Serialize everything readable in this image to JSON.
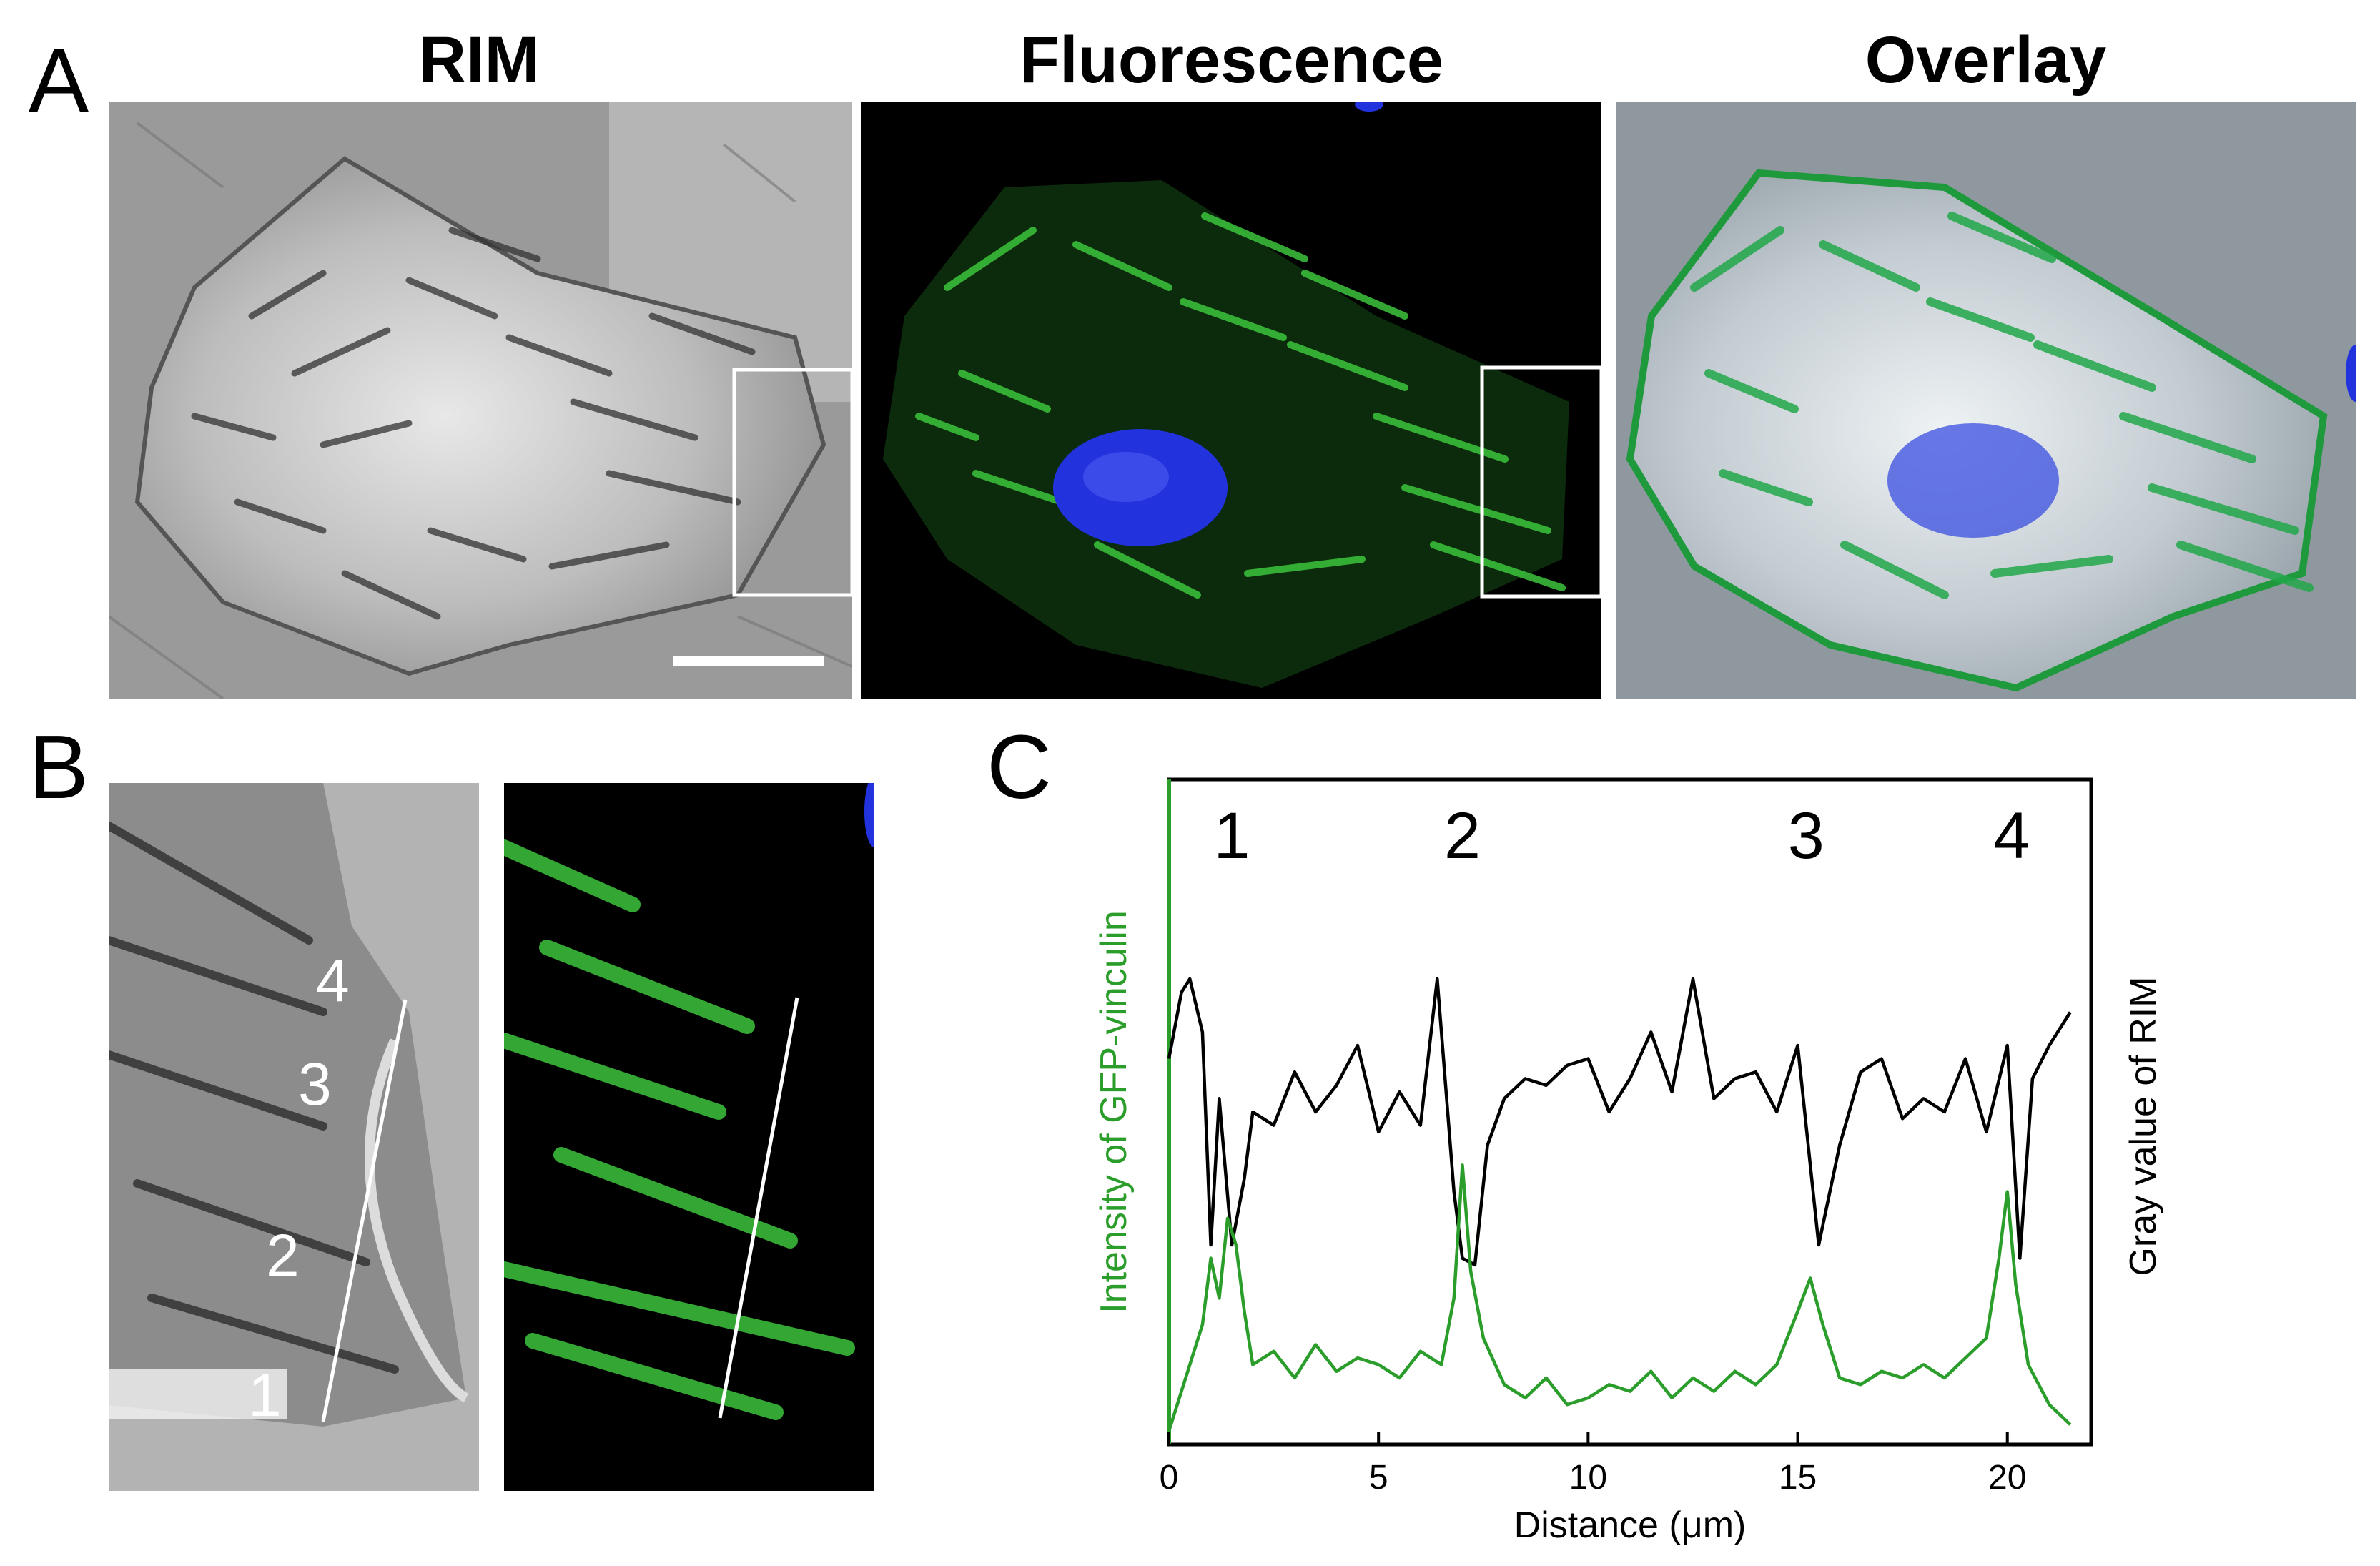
{
  "figure": {
    "panel_a_letter": "A",
    "panel_b_letter": "B",
    "panel_c_letter": "C",
    "column_titles": [
      "RIM",
      "Fluorescence",
      "Overlay"
    ],
    "zoom_markers": [
      "1",
      "2",
      "3",
      "4"
    ],
    "colors": {
      "gfp": "#2a9d2a",
      "nucleus": "#2233dd",
      "rim_line": "#000000",
      "background_fluor": "#000000"
    }
  },
  "chart_data": {
    "type": "line",
    "xlabel": "Distance (μm)",
    "ylabel_left": "Intensity of GFP-vinculin",
    "ylabel_right": "Gray value of RIM",
    "xlim": [
      0,
      22
    ],
    "x_ticks": [
      "0",
      "5",
      "10",
      "15",
      "20"
    ],
    "peak_labels": [
      {
        "text": "1",
        "x": 1.5
      },
      {
        "text": "2",
        "x": 7.0
      },
      {
        "text": "3",
        "x": 15.2
      },
      {
        "text": "4",
        "x": 20.1
      }
    ],
    "series": [
      {
        "color": "#000000",
        "x": [
          0,
          0.3,
          0.5,
          0.8,
          1.0,
          1.2,
          1.5,
          1.8,
          2.0,
          2.5,
          3.0,
          3.5,
          4.0,
          4.5,
          5.0,
          5.5,
          6.0,
          6.4,
          6.8,
          7.0,
          7.3,
          7.6,
          8.0,
          8.5,
          9.0,
          9.5,
          10.0,
          10.5,
          11.0,
          11.5,
          12.0,
          12.5,
          13.0,
          13.5,
          14.0,
          14.5,
          15.0,
          15.5,
          16.0,
          16.5,
          17.0,
          17.5,
          18.0,
          18.5,
          19.0,
          19.5,
          20.0,
          20.3,
          20.6,
          21.0,
          21.5
        ],
        "y": [
          0.58,
          0.68,
          0.7,
          0.62,
          0.3,
          0.52,
          0.3,
          0.4,
          0.5,
          0.48,
          0.56,
          0.5,
          0.54,
          0.6,
          0.47,
          0.53,
          0.48,
          0.7,
          0.38,
          0.28,
          0.27,
          0.45,
          0.52,
          0.55,
          0.54,
          0.57,
          0.58,
          0.5,
          0.55,
          0.62,
          0.53,
          0.7,
          0.52,
          0.55,
          0.56,
          0.5,
          0.6,
          0.3,
          0.45,
          0.56,
          0.58,
          0.49,
          0.52,
          0.5,
          0.58,
          0.47,
          0.6,
          0.28,
          0.55,
          0.6,
          0.65
        ]
      },
      {
        "color": "#2a9d2a",
        "x": [
          0,
          0.2,
          0.5,
          0.8,
          1.0,
          1.2,
          1.4,
          1.6,
          1.8,
          2.0,
          2.5,
          3.0,
          3.5,
          4.0,
          4.5,
          5.0,
          5.5,
          6.0,
          6.5,
          6.8,
          7.0,
          7.2,
          7.5,
          8.0,
          8.5,
          9.0,
          9.5,
          10.0,
          10.5,
          11.0,
          11.5,
          12.0,
          12.5,
          13.0,
          13.5,
          14.0,
          14.5,
          15.0,
          15.3,
          15.6,
          16.0,
          16.5,
          17.0,
          17.5,
          18.0,
          18.5,
          19.0,
          19.5,
          19.8,
          20.0,
          20.2,
          20.5,
          21.0,
          21.5
        ],
        "y": [
          0.02,
          0.06,
          0.12,
          0.18,
          0.28,
          0.22,
          0.34,
          0.3,
          0.2,
          0.12,
          0.14,
          0.1,
          0.15,
          0.11,
          0.13,
          0.12,
          0.1,
          0.14,
          0.12,
          0.22,
          0.42,
          0.26,
          0.16,
          0.09,
          0.07,
          0.1,
          0.06,
          0.07,
          0.09,
          0.08,
          0.11,
          0.07,
          0.1,
          0.08,
          0.11,
          0.09,
          0.12,
          0.2,
          0.25,
          0.18,
          0.1,
          0.09,
          0.11,
          0.1,
          0.12,
          0.1,
          0.13,
          0.16,
          0.28,
          0.38,
          0.24,
          0.12,
          0.06,
          0.03
        ]
      }
    ]
  }
}
